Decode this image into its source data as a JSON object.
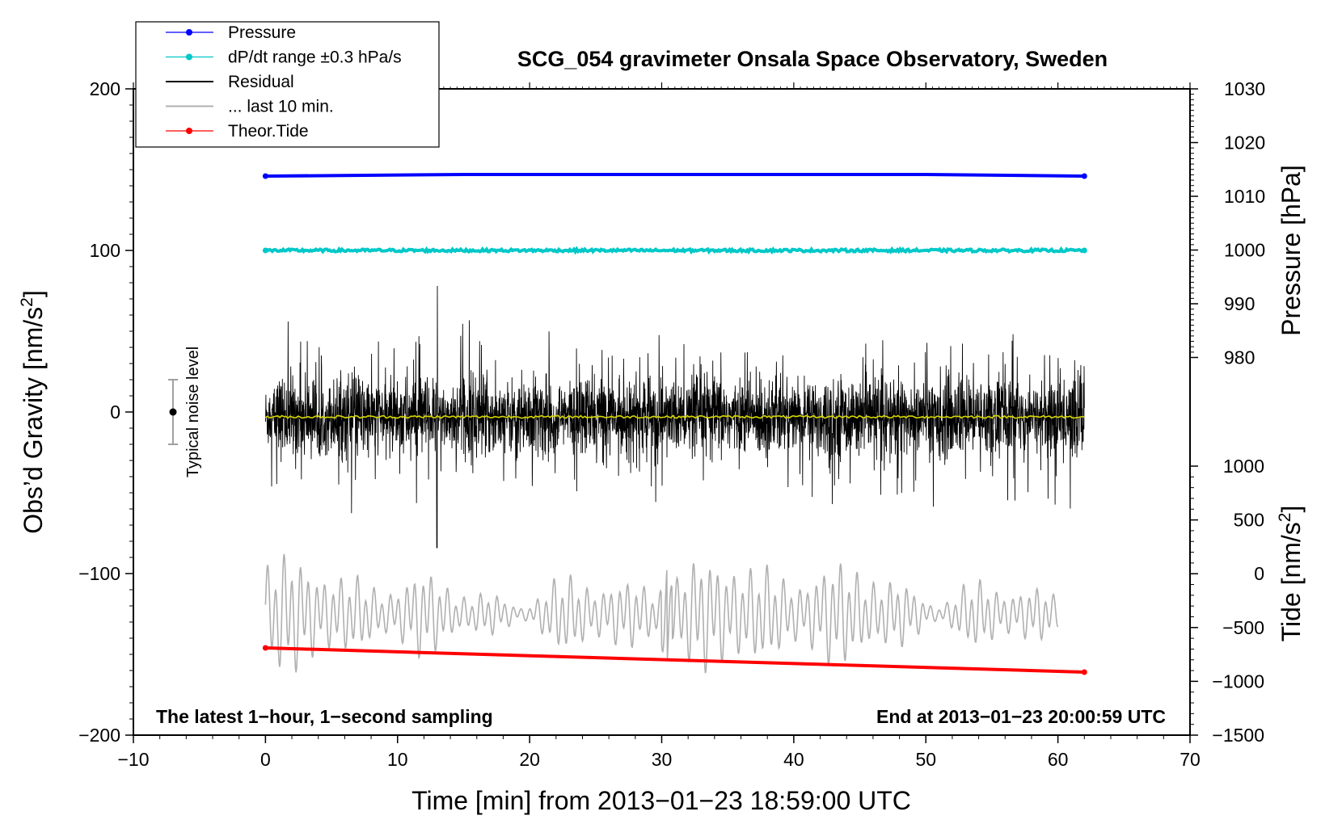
{
  "chart_data": {
    "type": "line",
    "title": "SCG_054 gravimeter Onsala Space Observatory, Sweden",
    "xlabel": "Time [min] from 2013−01−23 18:59:00 UTC",
    "ylabel_left_main": "Obs’d Gravity [nm/s",
    "ylabel_left_sup": "2",
    "ylabel_left_end": "]",
    "ylabel_right_pressure": "Pressure [hPa]",
    "ylabel_right_tide_main": "Tide [nm/s",
    "ylabel_right_tide_sup": "2",
    "ylabel_right_tide_end": "]",
    "xlim": [
      -10,
      70
    ],
    "ylim_left": [
      -200,
      200
    ],
    "x_ticks": [
      "−10",
      "0",
      "10",
      "20",
      "30",
      "40",
      "50",
      "60",
      "70"
    ],
    "y_left_ticks": [
      "−200",
      "−100",
      "0",
      "100",
      "200"
    ],
    "y_pressure_ticks": [
      "1030",
      "1020",
      "1010",
      "1000",
      "990",
      "980"
    ],
    "y_tide_ticks": [
      "1000",
      "500",
      "0",
      "−500",
      "−1000",
      "−1500"
    ],
    "grid": false,
    "legend_position": "top-left",
    "legend": [
      {
        "label": "Pressure",
        "color": "#0000ff",
        "marker": true
      },
      {
        "label": "dP/dt range ±0.3 hPa/s",
        "color": "#00c8c8",
        "marker": true
      },
      {
        "label": "Residual",
        "color": "#000000",
        "marker": false
      },
      {
        "label": "... last 10 min.",
        "color": "#b0b0b0",
        "marker": false
      },
      {
        "label": "Theor.Tide",
        "color": "#ff0000",
        "marker": true
      }
    ],
    "series": [
      {
        "name": "Pressure",
        "color": "#0000ff",
        "x": [
          0,
          15,
          27,
          50,
          62
        ],
        "y": [
          146,
          147,
          147,
          147,
          146
        ]
      },
      {
        "name": "dP/dt range ±0.3 hPa/s",
        "color": "#00c8c8",
        "x": [
          0,
          62
        ],
        "y": [
          100,
          100
        ]
      },
      {
        "name": "Residual",
        "color": "#000000",
        "x_range": [
          0,
          62
        ],
        "level": -3,
        "typical_amplitude": 22,
        "peak_max": 78,
        "peak_min": -84
      },
      {
        "name": "... last 10 min.",
        "color": "#b0b0b0",
        "x_range": [
          0,
          60
        ],
        "level": -125,
        "amplitude": 28,
        "peak_max": -66,
        "peak_min": -175
      },
      {
        "name": "Theor.Tide",
        "color": "#ff0000",
        "x": [
          0,
          62
        ],
        "y": [
          -146,
          -161
        ]
      }
    ],
    "noise_indicator": {
      "label": "Typical noise level",
      "x": -7,
      "y": 0,
      "half_range": 20
    },
    "annotations": {
      "bottom_left": "The latest 1−hour, 1−second sampling",
      "bottom_right": "End at 2013−01−23 20:00:59 UTC"
    }
  }
}
